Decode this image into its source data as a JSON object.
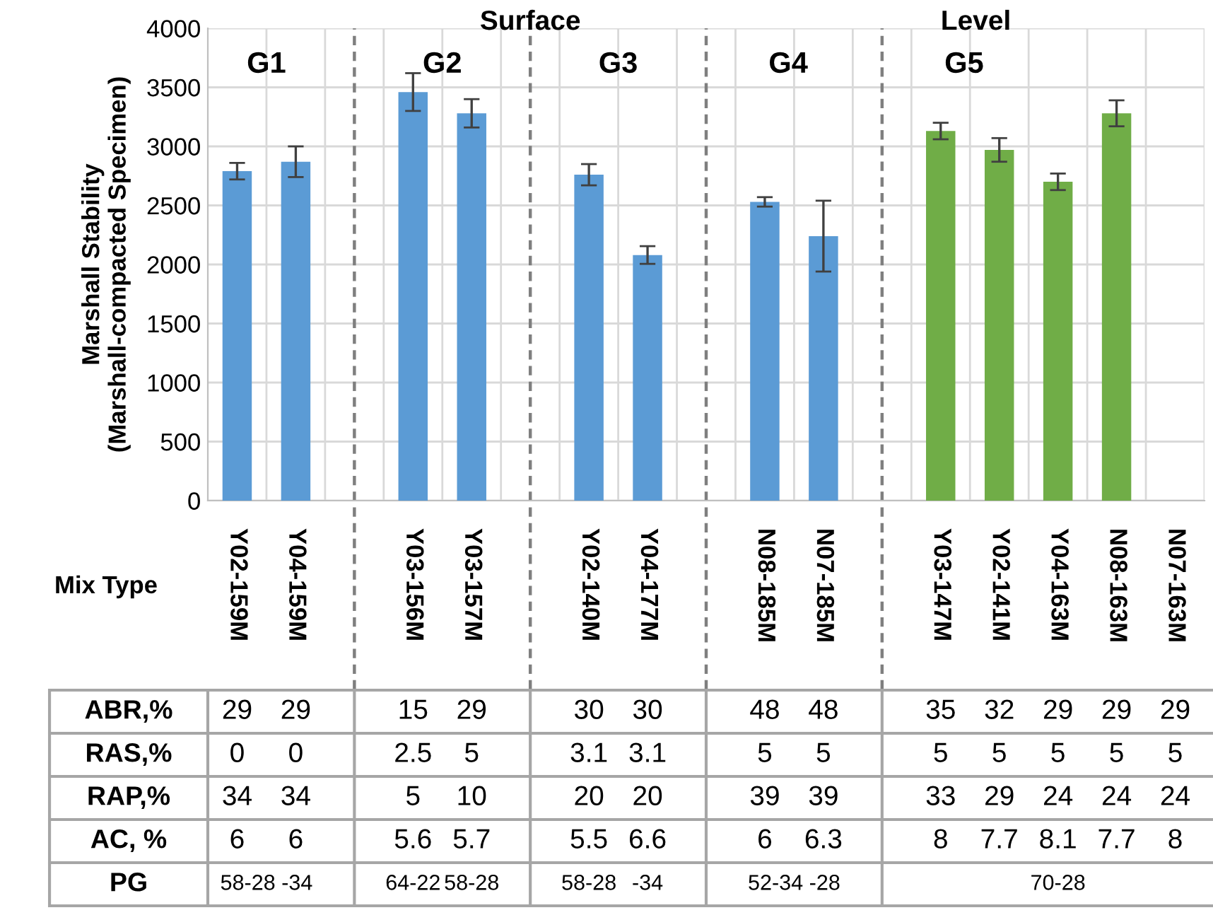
{
  "chart_data": {
    "type": "bar",
    "ylabel": "Marshall Stability\n(Marshall-compacted Specimen)",
    "categories": [
      "Y02-159M",
      "Y04-159M",
      null,
      "Y03-156M",
      "Y03-157M",
      null,
      "Y02-140M",
      "Y04-177M",
      null,
      "N08-185M",
      "N07-185M",
      null,
      "Y03-147M",
      "Y02-141M",
      "Y04-163M",
      "N08-163M",
      "N07-163M"
    ],
    "values": [
      2790,
      2870,
      null,
      3460,
      3280,
      null,
      2760,
      2080,
      null,
      2530,
      2240,
      null,
      3130,
      2970,
      2700,
      3280,
      null
    ],
    "errors": [
      70,
      130,
      null,
      160,
      120,
      null,
      90,
      75,
      null,
      40,
      300,
      null,
      70,
      100,
      70,
      110,
      null
    ],
    "colors": [
      "#5b9bd5",
      "#5b9bd5",
      null,
      "#5b9bd5",
      "#5b9bd5",
      null,
      "#5b9bd5",
      "#5b9bd5",
      null,
      "#5b9bd5",
      "#5b9bd5",
      null,
      "#70ad47",
      "#70ad47",
      "#70ad47",
      "#70ad47",
      "#70ad47"
    ],
    "ylim": [
      0,
      4000
    ],
    "yticks": [
      0,
      500,
      1000,
      1500,
      2000,
      2500,
      3000,
      3500,
      4000
    ],
    "grid": true,
    "annotations": [
      "Surface",
      "Level",
      "G1",
      "G2",
      "G3",
      "G4",
      "G5",
      "Mix Type",
      "ABR,%",
      "29",
      "29",
      "15",
      "29",
      "30",
      "30",
      "48",
      "48",
      "35",
      "32",
      "29",
      "29",
      "29",
      "RAS,%",
      "0",
      "0",
      "2.5",
      "5",
      "3.1",
      "3.1",
      "5",
      "5",
      "5",
      "5",
      "5",
      "5",
      "5",
      "RAP,%",
      "34",
      "34",
      "5",
      "10",
      "20",
      "20",
      "39",
      "39",
      "33",
      "29",
      "24",
      "24",
      "24",
      "AC, %",
      "6",
      "6",
      "5.6",
      "5.7",
      "5.5",
      "6.6",
      "6",
      "6.3",
      "8",
      "7.7",
      "8.1",
      "7.7",
      "8",
      "PG",
      "58-28 -34",
      "64-22",
      "58-28",
      "58-28",
      "-34",
      "52-34 -28",
      "70-28"
    ]
  }
}
